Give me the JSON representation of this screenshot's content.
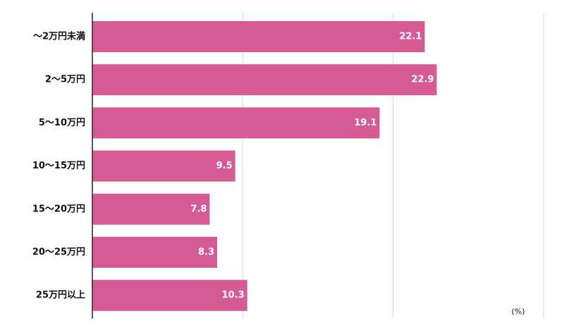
{
  "chart_data": {
    "type": "bar",
    "orientation": "horizontal",
    "categories": [
      "〜2万円未満",
      "2〜5万円",
      "5〜10万円",
      "10〜15万円",
      "15〜20万円",
      "20〜25万円",
      "25万円以上"
    ],
    "values": [
      22.1,
      22.9,
      19.1,
      9.5,
      7.8,
      8.3,
      10.3
    ],
    "data_labels": [
      "22.1",
      "22.9",
      "19.1",
      "9.5",
      "7.8",
      "8.3",
      "10.3"
    ],
    "unit_label": "(%)",
    "xlim": [
      0,
      30
    ],
    "gridlines_at": [
      10,
      20,
      30
    ],
    "grid": true,
    "legend": "none",
    "bar_color": "#d65a93",
    "grid_color": "#d9d9d9",
    "axis_color": "#222222"
  }
}
